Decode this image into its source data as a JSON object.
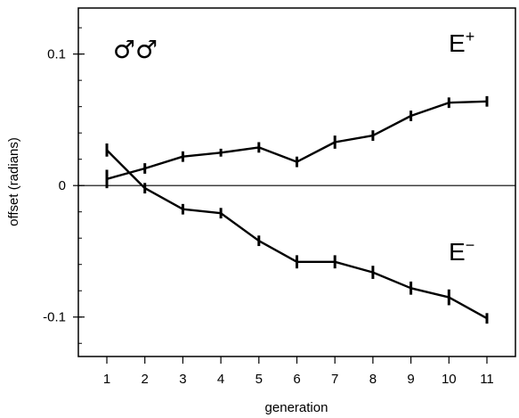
{
  "chart_data": {
    "type": "line",
    "title": "",
    "xlabel": "generation",
    "ylabel": "offset (radians)",
    "x": [
      1,
      2,
      3,
      4,
      5,
      6,
      7,
      8,
      9,
      10,
      11
    ],
    "xlim": [
      0.25,
      11.75
    ],
    "ylim": [
      -0.13,
      0.135
    ],
    "yticks": [
      0.1,
      0,
      -0.1
    ],
    "ytick_labels": [
      "0.1",
      "0",
      "-0.1"
    ],
    "minor_ytick_step": 0.02,
    "grid": false,
    "zero_line": true,
    "series": [
      {
        "name": "E+",
        "values": [
          0.005,
          0.013,
          0.022,
          0.025,
          0.029,
          0.018,
          0.033,
          0.038,
          0.053,
          0.063,
          0.064
        ],
        "errors": [
          0.007,
          0.004,
          0.004,
          0.003,
          0.004,
          0.004,
          0.005,
          0.004,
          0.004,
          0.004,
          0.004
        ]
      },
      {
        "name": "E−",
        "values": [
          0.027,
          -0.002,
          -0.018,
          -0.021,
          -0.042,
          -0.058,
          -0.058,
          -0.066,
          -0.078,
          -0.085,
          -0.101
        ],
        "errors": [
          0.005,
          0.004,
          0.004,
          0.004,
          0.004,
          0.005,
          0.005,
          0.005,
          0.005,
          0.006,
          0.004
        ]
      }
    ],
    "annotations": {
      "symbol": "♂♂",
      "e_plus_base": "E",
      "e_plus_sup": "+",
      "e_minus_base": "E",
      "e_minus_sup": "−"
    }
  }
}
